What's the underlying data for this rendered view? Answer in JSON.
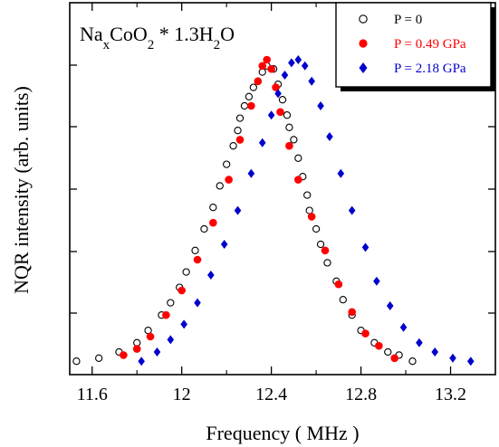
{
  "chart_data": {
    "type": "scatter",
    "title": "",
    "xlabel": "Frequency ( MHz )",
    "ylabel": "NQR intensity (arb. units)",
    "xlim": [
      11.5,
      13.4
    ],
    "ylim": [
      0,
      1.0
    ],
    "x_ticks": [
      "11.6",
      "12",
      "12.4",
      "12.8",
      "13.2"
    ],
    "y_tick_labels_shown": false,
    "grid": false,
    "compound": {
      "base": "Na",
      "sub1": "x",
      "mid": "CoO",
      "sub2": "2",
      "tail": " * 1.3H",
      "sub3": "2",
      "end": "O"
    },
    "legend": {
      "position": "top-right"
    },
    "series": [
      {
        "name": "P = 0",
        "color": "#000000",
        "marker": "open-circle",
        "x": [
          11.53,
          11.63,
          11.72,
          11.8,
          11.85,
          11.91,
          11.95,
          11.99,
          12.02,
          12.06,
          12.1,
          12.14,
          12.17,
          12.2,
          12.23,
          12.25,
          12.26,
          12.28,
          12.3,
          12.32,
          12.34,
          12.36,
          12.38,
          12.41,
          12.43,
          12.45,
          12.47,
          12.48,
          12.5,
          12.52,
          12.54,
          12.56,
          12.57,
          12.6,
          12.62,
          12.65,
          12.69,
          12.72,
          12.76,
          12.8,
          12.86,
          12.92,
          12.97,
          13.03
        ],
        "y": [
          0.02,
          0.03,
          0.05,
          0.08,
          0.12,
          0.17,
          0.21,
          0.26,
          0.31,
          0.38,
          0.45,
          0.52,
          0.59,
          0.66,
          0.72,
          0.77,
          0.81,
          0.85,
          0.88,
          0.91,
          0.93,
          0.96,
          0.98,
          0.97,
          0.92,
          0.87,
          0.82,
          0.78,
          0.74,
          0.68,
          0.62,
          0.56,
          0.51,
          0.45,
          0.4,
          0.34,
          0.28,
          0.22,
          0.17,
          0.12,
          0.08,
          0.05,
          0.04,
          0.02
        ]
      },
      {
        "name": "P = 0.49 GPa",
        "color": "#ff0000",
        "marker": "filled-circle",
        "x": [
          11.74,
          11.8,
          11.86,
          11.93,
          12.0,
          12.07,
          12.14,
          12.21,
          12.26,
          12.31,
          12.34,
          12.36,
          12.38,
          12.4,
          12.42,
          12.44,
          12.48,
          12.52,
          12.58,
          12.64,
          12.7,
          12.76,
          12.82,
          12.88,
          12.95
        ],
        "y": [
          0.04,
          0.06,
          0.1,
          0.17,
          0.25,
          0.35,
          0.47,
          0.61,
          0.74,
          0.85,
          0.93,
          0.98,
          1.0,
          0.97,
          0.91,
          0.83,
          0.72,
          0.61,
          0.49,
          0.38,
          0.27,
          0.18,
          0.11,
          0.07,
          0.03
        ]
      },
      {
        "name": "P = 2.18 GPa",
        "color": "#0000cc",
        "marker": "filled-diamond",
        "x": [
          11.82,
          11.89,
          11.95,
          12.01,
          12.07,
          12.13,
          12.19,
          12.25,
          12.31,
          12.36,
          12.4,
          12.43,
          12.46,
          12.49,
          12.52,
          12.55,
          12.58,
          12.62,
          12.66,
          12.71,
          12.76,
          12.82,
          12.87,
          12.93,
          12.99,
          13.06,
          13.13,
          13.21,
          13.29
        ],
        "y": [
          0.02,
          0.05,
          0.09,
          0.14,
          0.21,
          0.3,
          0.4,
          0.51,
          0.63,
          0.73,
          0.82,
          0.89,
          0.95,
          0.99,
          1.0,
          0.98,
          0.93,
          0.85,
          0.75,
          0.63,
          0.51,
          0.39,
          0.28,
          0.2,
          0.13,
          0.08,
          0.05,
          0.03,
          0.02
        ]
      }
    ]
  }
}
